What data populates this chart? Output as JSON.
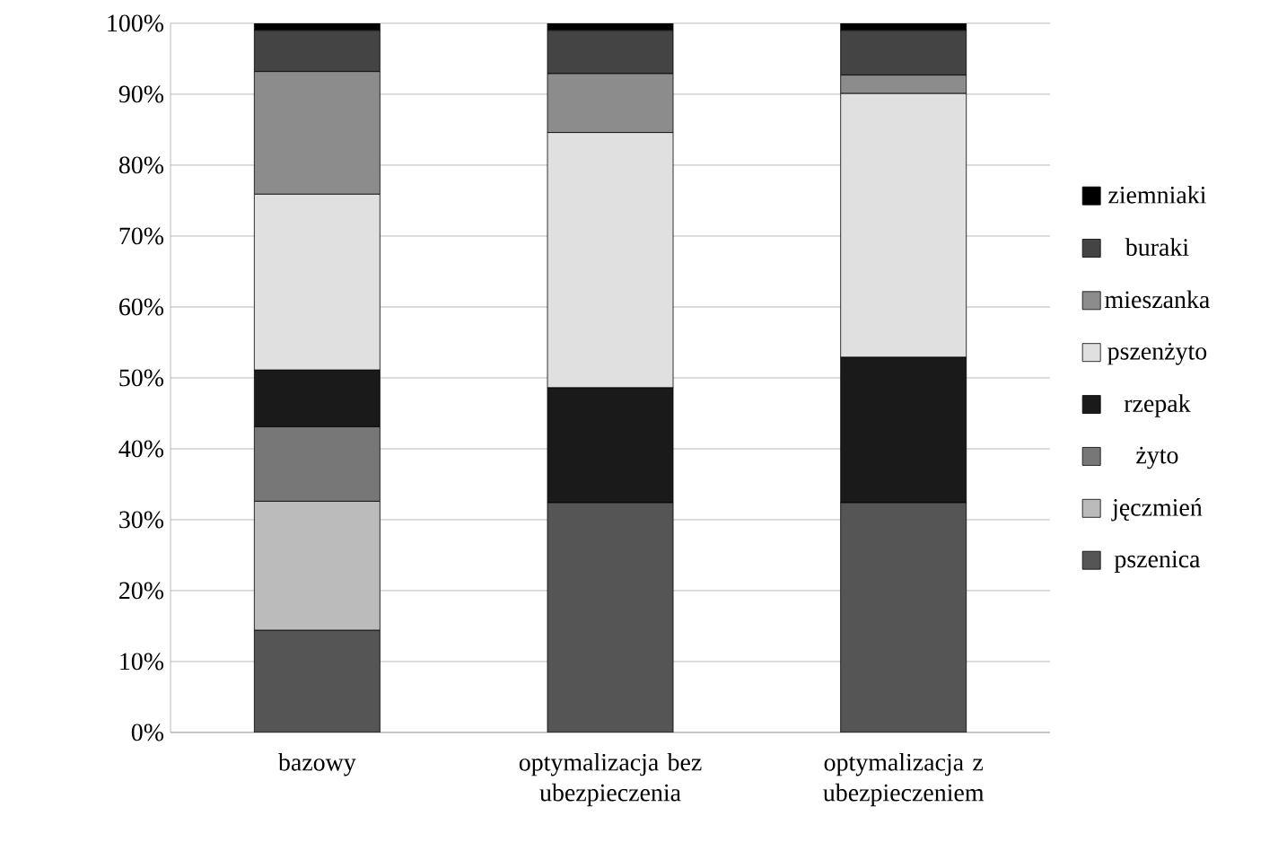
{
  "chart_data": {
    "type": "bar",
    "stacked": true,
    "categories": [
      "bazowy",
      "optymalizacja bez ubezpieczenia",
      "optymalizacja z ubezpieczeniem"
    ],
    "series": [
      {
        "name": "pszenica",
        "color": "#555555",
        "values": [
          14.4,
          32.4,
          32.4
        ]
      },
      {
        "name": "jęczmień",
        "color": "#bbbbbb",
        "values": [
          18.2,
          0,
          0
        ]
      },
      {
        "name": "żyto",
        "color": "#777777",
        "values": [
          10.5,
          0,
          0
        ]
      },
      {
        "name": "rzepak",
        "color": "#1a1a1a",
        "values": [
          8.0,
          16.2,
          20.5
        ]
      },
      {
        "name": "pszenżyto",
        "color": "#e0e0e0",
        "values": [
          24.8,
          36.0,
          37.2
        ]
      },
      {
        "name": "mieszanka",
        "color": "#8c8c8c",
        "values": [
          17.3,
          8.3,
          2.6
        ]
      },
      {
        "name": "buraki",
        "color": "#444444",
        "values": [
          5.8,
          6.1,
          6.3
        ]
      },
      {
        "name": "ziemniaki",
        "color": "#000000",
        "values": [
          1.0,
          1.0,
          1.0
        ]
      }
    ],
    "ylim": [
      0,
      100
    ],
    "yticks": [
      {
        "value": 0,
        "label": "0%"
      },
      {
        "value": 10,
        "label": "10%"
      },
      {
        "value": 20,
        "label": "20%"
      },
      {
        "value": 30,
        "label": "30%"
      },
      {
        "value": 40,
        "label": "40%"
      },
      {
        "value": 50,
        "label": "50%"
      },
      {
        "value": 60,
        "label": "60%"
      },
      {
        "value": 70,
        "label": "70%"
      },
      {
        "value": 80,
        "label": "80%"
      },
      {
        "value": 90,
        "label": "90%"
      },
      {
        "value": 100,
        "label": "100%"
      }
    ],
    "grid": "y",
    "legend": "right"
  }
}
